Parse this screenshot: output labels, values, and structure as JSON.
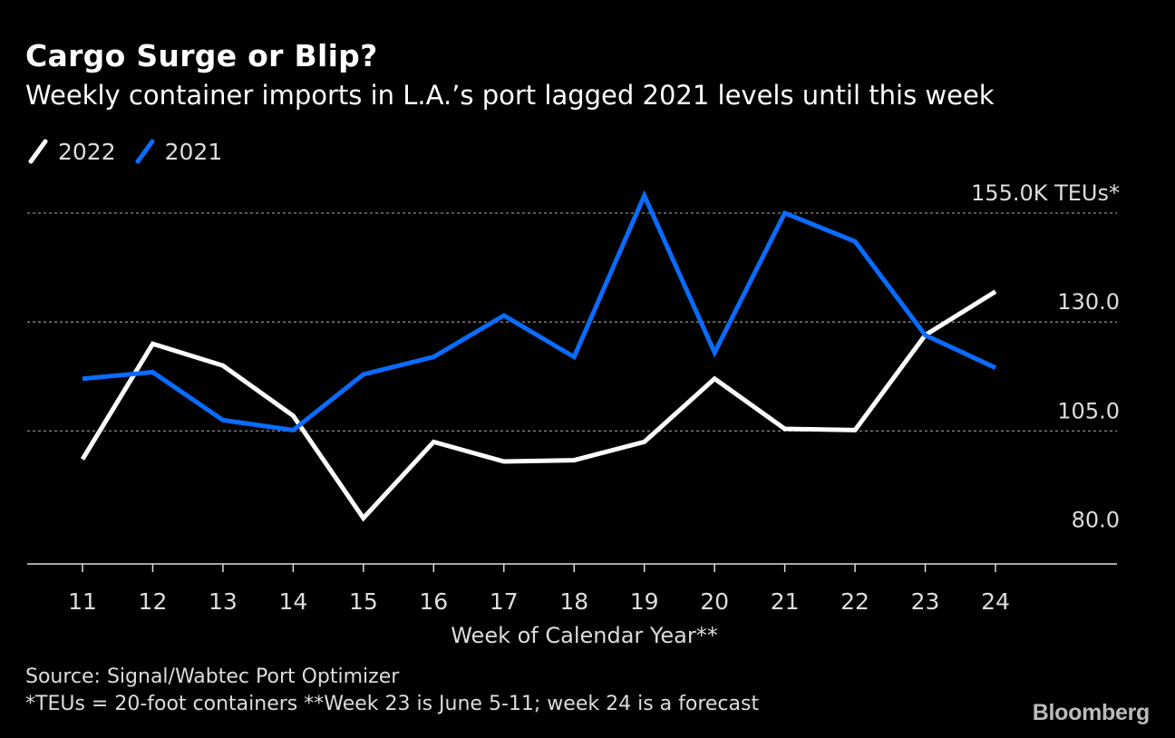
{
  "header": {
    "title": "Cargo Surge or Blip?",
    "subtitle": "Weekly container imports in L.A.’s port lagged 2021 levels until this week"
  },
  "footer": {
    "source": "Source: Signal/Wabtec Port Optimizer",
    "note": "*TEUs = 20-foot containers **Week 23 is June 5-11; week 24 is a forecast",
    "brand": "Bloomberg"
  },
  "chart_data": {
    "type": "line",
    "title": "Cargo Surge or Blip?",
    "xlabel": "Week of Calendar Year**",
    "ylabel": "",
    "categories": [
      "11",
      "12",
      "13",
      "14",
      "15",
      "16",
      "17",
      "18",
      "19",
      "20",
      "21",
      "22",
      "23",
      "24"
    ],
    "series": [
      {
        "name": "2022",
        "color": "#ffffff",
        "values": [
          98.5,
          125.0,
          120.0,
          108.5,
          85.0,
          102.5,
          98.0,
          98.3,
          102.5,
          117.0,
          105.5,
          105.2,
          127.0,
          137.0
        ]
      },
      {
        "name": "2021",
        "color": "#0a6cff",
        "values": [
          117.0,
          118.5,
          107.5,
          105.2,
          118.0,
          122.0,
          131.5,
          122.0,
          159.0,
          123.0,
          155.0,
          148.5,
          127.0,
          119.5
        ]
      }
    ],
    "ylim": [
      74.5,
      160
    ],
    "yticks": [
      80,
      105,
      130,
      155
    ],
    "ytick_labels": [
      "80.0",
      "105.0",
      "130.0",
      "155.0K TEUs*"
    ],
    "grid": true,
    "legend": "top-left"
  }
}
